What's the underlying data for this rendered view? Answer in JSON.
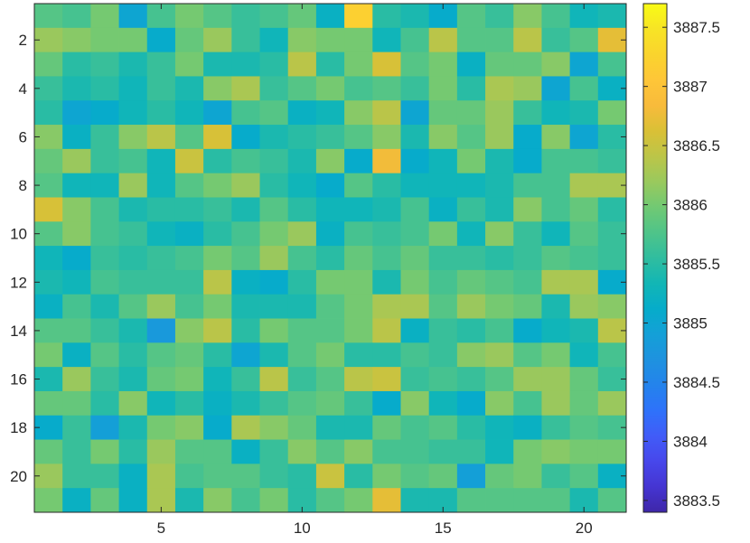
{
  "chart_data": {
    "type": "heatmap",
    "title": "",
    "xlabel": "",
    "ylabel": "",
    "x_ticks": [
      5,
      10,
      15,
      20
    ],
    "y_ticks": [
      2,
      4,
      6,
      8,
      10,
      12,
      14,
      16,
      18,
      20
    ],
    "y_axis_direction": "reversed",
    "xlim": [
      0.5,
      21.5
    ],
    "ylim": [
      0.5,
      21.5
    ],
    "colormap": "parula",
    "clim": [
      3883.4,
      3887.7
    ],
    "colorbar": {
      "ticks": [
        3883.5,
        3884,
        3884.5,
        3885,
        3885.5,
        3886,
        3886.5,
        3887,
        3887.5
      ],
      "tick_labels": [
        "3883.5",
        "3884",
        "3884.5",
        "3885",
        "3885.5",
        "3886",
        "3886.5",
        "3887",
        "3887.5"
      ],
      "position": "right"
    },
    "grid": false,
    "values": [
      [
        3885.8,
        3885.7,
        3886.0,
        3885.0,
        3885.7,
        3886.0,
        3885.8,
        3885.6,
        3885.7,
        3885.9,
        3885.2,
        3887.2,
        3885.5,
        3885.4,
        3885.1,
        3885.8,
        3885.6,
        3886.1,
        3885.7,
        3885.3,
        3885.4
      ],
      [
        3886.2,
        3886.1,
        3886.0,
        3886.0,
        3885.1,
        3885.9,
        3886.2,
        3885.6,
        3885.3,
        3886.1,
        3886.0,
        3886.0,
        3885.3,
        3885.7,
        3886.4,
        3885.8,
        3885.8,
        3886.4,
        3885.6,
        3885.8,
        3886.7
      ],
      [
        3885.9,
        3885.5,
        3885.6,
        3885.4,
        3885.6,
        3886.0,
        3885.4,
        3885.4,
        3885.5,
        3886.4,
        3885.5,
        3886.0,
        3886.6,
        3885.8,
        3886.0,
        3885.2,
        3885.9,
        3885.9,
        3886.1,
        3885.0,
        3885.7
      ],
      [
        3885.6,
        3885.4,
        3885.5,
        3885.3,
        3885.6,
        3885.4,
        3886.1,
        3886.3,
        3885.6,
        3885.8,
        3886.0,
        3885.7,
        3885.8,
        3885.6,
        3886.0,
        3885.5,
        3886.3,
        3886.2,
        3885.0,
        3885.7,
        3885.2
      ],
      [
        3885.5,
        3885.0,
        3885.1,
        3885.3,
        3885.5,
        3885.3,
        3885.0,
        3885.7,
        3885.8,
        3885.2,
        3885.3,
        3886.1,
        3886.4,
        3885.0,
        3885.9,
        3885.9,
        3886.2,
        3885.6,
        3885.3,
        3885.4,
        3886.0
      ],
      [
        3886.1,
        3885.2,
        3885.6,
        3886.1,
        3886.4,
        3885.8,
        3886.6,
        3885.1,
        3885.4,
        3885.5,
        3885.6,
        3885.8,
        3886.1,
        3885.4,
        3886.1,
        3885.8,
        3886.2,
        3885.1,
        3886.1,
        3885.0,
        3885.5
      ],
      [
        3885.9,
        3886.2,
        3885.6,
        3885.7,
        3885.3,
        3886.5,
        3885.5,
        3885.7,
        3885.6,
        3885.4,
        3886.1,
        3885.1,
        3886.8,
        3885.1,
        3885.3,
        3886.0,
        3885.4,
        3885.1,
        3885.7,
        3885.7,
        3885.6
      ],
      [
        3885.8,
        3885.3,
        3885.3,
        3886.2,
        3885.3,
        3885.8,
        3886.0,
        3886.2,
        3885.5,
        3885.3,
        3885.1,
        3885.8,
        3885.5,
        3885.3,
        3885.3,
        3885.3,
        3885.4,
        3885.7,
        3885.7,
        3886.3,
        3886.3
      ],
      [
        3886.6,
        3886.1,
        3885.7,
        3885.4,
        3885.5,
        3885.5,
        3885.6,
        3885.4,
        3885.8,
        3885.5,
        3885.3,
        3885.3,
        3885.4,
        3885.7,
        3885.2,
        3885.6,
        3885.4,
        3886.1,
        3885.7,
        3885.9,
        3885.5
      ],
      [
        3885.8,
        3886.1,
        3885.7,
        3885.6,
        3885.3,
        3885.2,
        3885.5,
        3885.7,
        3886.0,
        3886.2,
        3885.2,
        3885.7,
        3885.6,
        3885.7,
        3886.0,
        3885.3,
        3886.1,
        3885.6,
        3885.3,
        3885.8,
        3885.6
      ],
      [
        3885.3,
        3885.1,
        3885.6,
        3885.5,
        3885.6,
        3885.7,
        3886.0,
        3885.8,
        3886.2,
        3885.7,
        3885.5,
        3885.9,
        3885.7,
        3885.9,
        3885.6,
        3885.6,
        3885.5,
        3885.6,
        3885.8,
        3885.7,
        3885.6
      ],
      [
        3885.4,
        3885.3,
        3885.7,
        3885.6,
        3885.6,
        3885.6,
        3886.4,
        3885.2,
        3885.1,
        3885.5,
        3886.0,
        3886.0,
        3885.4,
        3886.0,
        3885.7,
        3885.9,
        3885.8,
        3885.7,
        3886.3,
        3886.3,
        3885.1
      ],
      [
        3885.2,
        3885.7,
        3885.4,
        3885.8,
        3886.2,
        3885.7,
        3886.0,
        3885.4,
        3885.4,
        3885.4,
        3885.8,
        3886.0,
        3886.3,
        3886.3,
        3885.8,
        3886.2,
        3886.0,
        3885.9,
        3885.4,
        3886.2,
        3886.1
      ],
      [
        3885.8,
        3885.8,
        3885.6,
        3885.4,
        3884.8,
        3886.1,
        3886.4,
        3885.5,
        3886.0,
        3885.8,
        3885.8,
        3886.0,
        3886.4,
        3885.2,
        3885.6,
        3885.5,
        3885.7,
        3885.1,
        3885.3,
        3885.4,
        3886.4
      ],
      [
        3886.0,
        3885.2,
        3885.8,
        3885.5,
        3885.8,
        3885.9,
        3885.5,
        3885.0,
        3885.4,
        3885.8,
        3886.0,
        3885.5,
        3885.5,
        3885.7,
        3885.6,
        3886.1,
        3886.2,
        3885.8,
        3886.0,
        3885.3,
        3885.7
      ],
      [
        3885.4,
        3886.2,
        3885.6,
        3885.4,
        3885.9,
        3886.0,
        3885.3,
        3885.6,
        3886.4,
        3885.6,
        3885.8,
        3886.4,
        3886.5,
        3885.6,
        3885.7,
        3885.6,
        3885.8,
        3886.2,
        3886.2,
        3885.9,
        3885.6
      ],
      [
        3885.9,
        3885.9,
        3885.5,
        3886.1,
        3885.3,
        3885.5,
        3885.2,
        3885.4,
        3885.6,
        3885.8,
        3885.9,
        3885.6,
        3885.1,
        3886.1,
        3885.3,
        3885.1,
        3886.1,
        3885.7,
        3886.2,
        3885.9,
        3886.2
      ],
      [
        3885.1,
        3885.6,
        3884.9,
        3885.4,
        3886.0,
        3886.1,
        3885.1,
        3886.3,
        3886.1,
        3885.9,
        3885.4,
        3885.4,
        3885.9,
        3885.7,
        3885.8,
        3885.5,
        3885.3,
        3885.2,
        3885.6,
        3885.8,
        3885.7
      ],
      [
        3885.9,
        3885.6,
        3886.0,
        3885.5,
        3886.2,
        3885.8,
        3885.8,
        3885.2,
        3885.6,
        3886.1,
        3885.8,
        3886.1,
        3885.7,
        3885.7,
        3885.6,
        3885.6,
        3885.3,
        3886.0,
        3886.1,
        3886.0,
        3886.0
      ],
      [
        3886.2,
        3885.6,
        3885.6,
        3885.2,
        3886.3,
        3885.7,
        3885.8,
        3885.8,
        3885.6,
        3885.5,
        3886.5,
        3885.5,
        3886.0,
        3885.8,
        3885.9,
        3884.9,
        3885.9,
        3886.0,
        3885.6,
        3885.8,
        3885.2
      ],
      [
        3886.0,
        3885.2,
        3885.9,
        3885.2,
        3886.3,
        3885.4,
        3886.1,
        3885.7,
        3886.0,
        3885.5,
        3885.8,
        3886.0,
        3886.7,
        3885.4,
        3885.4,
        3885.8,
        3885.8,
        3885.8,
        3885.8,
        3885.4,
        3885.8
      ]
    ]
  }
}
